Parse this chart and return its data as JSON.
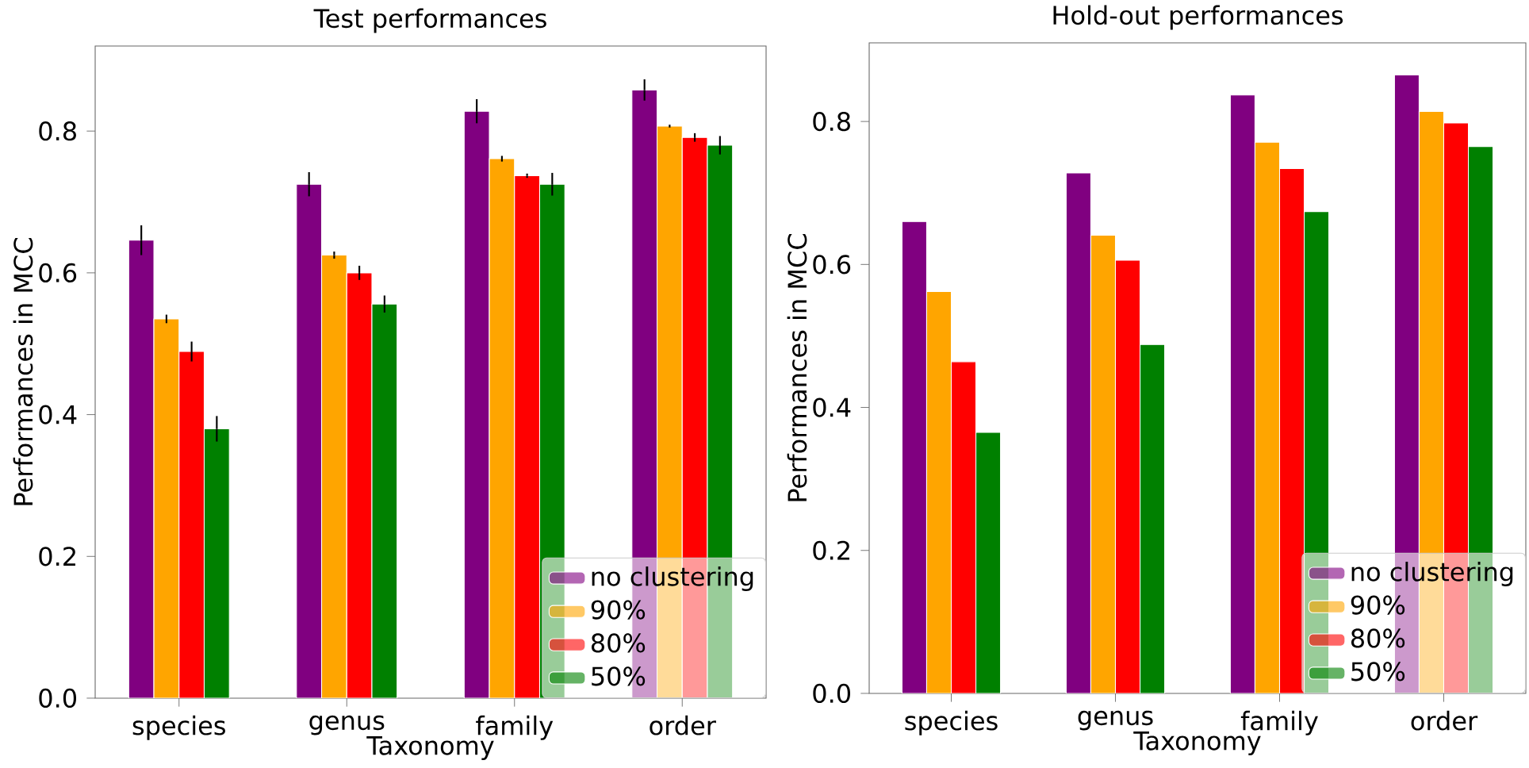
{
  "chart_data": [
    {
      "type": "bar",
      "title": "Test performances",
      "xlabel": "Taxonomy",
      "ylabel": "Performances in MCC",
      "categories": [
        "species",
        "genus",
        "family",
        "order"
      ],
      "series": [
        {
          "name": "no clustering",
          "color": "#800080",
          "values": [
            0.646,
            0.725,
            0.828,
            0.858
          ],
          "errors": [
            0.021,
            0.017,
            0.017,
            0.015
          ]
        },
        {
          "name": "90%",
          "color": "#ffa500",
          "values": [
            0.535,
            0.625,
            0.761,
            0.807
          ],
          "errors": [
            0.006,
            0.005,
            0.004,
            0.002
          ]
        },
        {
          "name": "80%",
          "color": "#ff0000",
          "values": [
            0.489,
            0.6,
            0.737,
            0.791
          ],
          "errors": [
            0.014,
            0.01,
            0.003,
            0.006
          ]
        },
        {
          "name": "50%",
          "color": "#008000",
          "values": [
            0.38,
            0.556,
            0.725,
            0.78
          ],
          "errors": [
            0.018,
            0.012,
            0.016,
            0.013
          ]
        }
      ],
      "ylim": [
        0,
        0.92
      ],
      "yticks": [
        {
          "value": 0,
          "label": "0.0"
        },
        0.2,
        0.4,
        0.6,
        0.8
      ],
      "legend": "bottom right"
    },
    {
      "type": "bar",
      "title": "Hold-out performances",
      "xlabel": "Taxonomy",
      "ylabel": "Performances in MCC",
      "categories": [
        "species",
        "genus",
        "family",
        "order"
      ],
      "series": [
        {
          "name": "no clustering",
          "color": "#800080",
          "values": [
            0.66,
            0.728,
            0.837,
            0.865
          ]
        },
        {
          "name": "90%",
          "color": "#ffa500",
          "values": [
            0.562,
            0.641,
            0.771,
            0.814
          ]
        },
        {
          "name": "80%",
          "color": "#ff0000",
          "values": [
            0.464,
            0.606,
            0.734,
            0.798
          ]
        },
        {
          "name": "50%",
          "color": "#008000",
          "values": [
            0.365,
            0.488,
            0.674,
            0.765
          ]
        }
      ],
      "ylim": [
        0,
        0.91
      ],
      "yticks": [
        {
          "value": 0,
          "label": "0.0"
        },
        0.2,
        0.4,
        0.6,
        0.8
      ],
      "legend": "bottom right"
    }
  ]
}
